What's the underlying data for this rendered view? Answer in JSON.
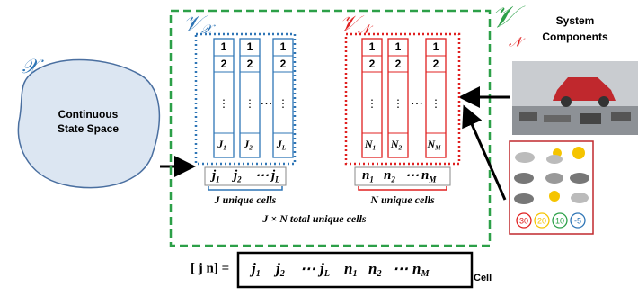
{
  "state_space": {
    "symbol": "𝒳",
    "label_lines": [
      "Continuous",
      "State Space"
    ]
  },
  "outer": {
    "symbol": "𝒱",
    "sub": "𝒩"
  },
  "system_components": {
    "lines": [
      "System",
      "Components"
    ]
  },
  "temperatures": [
    "30",
    "20",
    "10",
    "-5"
  ],
  "vx": {
    "symbol": "𝒱",
    "sub": "𝒳",
    "rows": [
      "1",
      "2",
      "⋮"
    ],
    "columns": [
      {
        "base": "J",
        "sub": "1"
      },
      {
        "base": "J",
        "sub": "2"
      },
      {
        "base": "J",
        "sub": "L"
      }
    ],
    "dots": "⋯",
    "summary": [
      {
        "base": "j",
        "sub": "1"
      },
      {
        "base": "j",
        "sub": "2"
      },
      "⋯",
      {
        "base": "j",
        "sub": "L"
      }
    ],
    "caption": {
      "var": "J",
      "text": "unique cells"
    }
  },
  "vn": {
    "symbol": "𝒱",
    "sub": "𝒩",
    "rows": [
      "1",
      "2",
      "⋮"
    ],
    "columns": [
      {
        "base": "N",
        "sub": "1"
      },
      {
        "base": "N",
        "sub": "2"
      },
      {
        "base": "N",
        "sub": "M"
      }
    ],
    "dots": "⋯",
    "summary": [
      {
        "base": "n",
        "sub": "1"
      },
      {
        "base": "n",
        "sub": "2"
      },
      "⋯",
      {
        "base": "n",
        "sub": "M"
      }
    ],
    "caption": {
      "var": "N",
      "text": "unique cells"
    }
  },
  "total": "J × N total unique cells",
  "formula": {
    "lhs": "[ j n] =",
    "tokens": [
      {
        "base": "j",
        "sub": "1"
      },
      {
        "base": "j",
        "sub": "2"
      },
      "⋯",
      {
        "base": "j",
        "sub": "L"
      },
      {
        "base": "n",
        "sub": "1"
      },
      {
        "base": "n",
        "sub": "2"
      },
      "⋯",
      {
        "base": "n",
        "sub": "M"
      }
    ],
    "suffix": "Cell"
  }
}
